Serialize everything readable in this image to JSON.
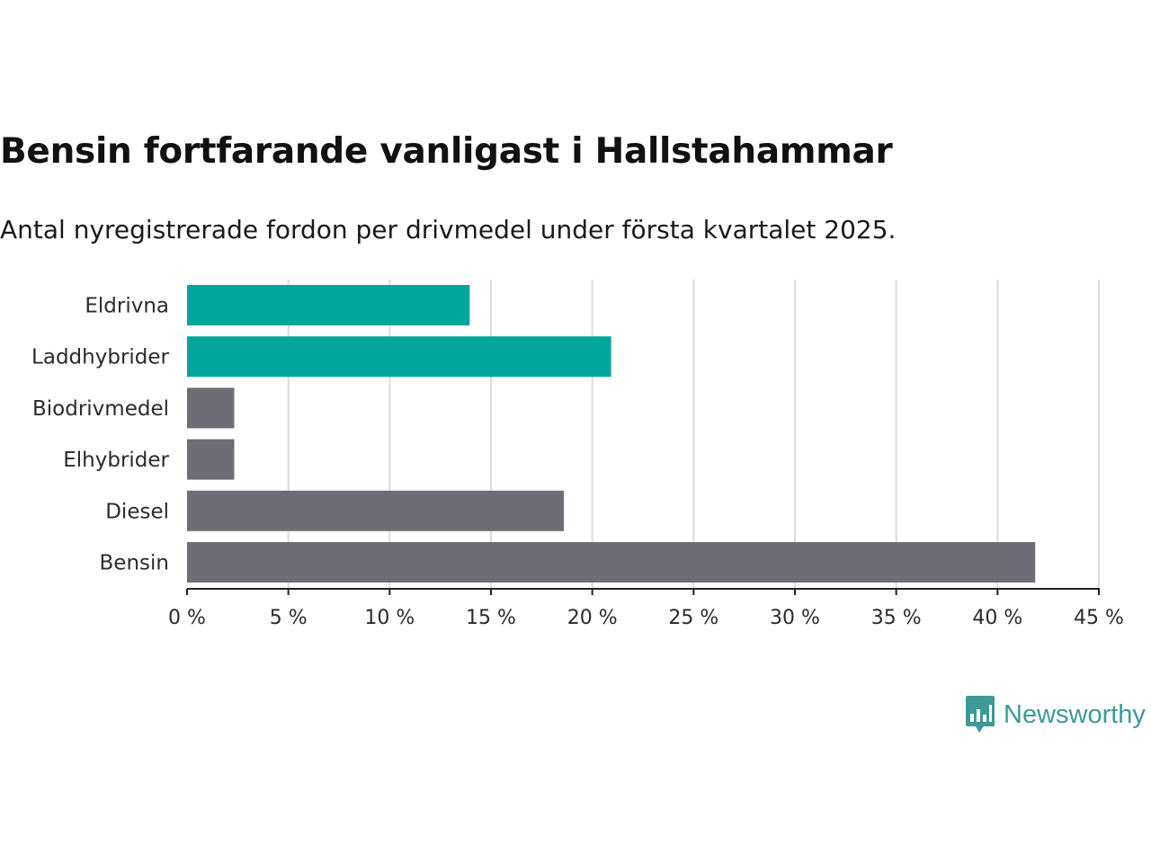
{
  "title": "Bensin fortfarande vanligast i Hallstahammar",
  "subtitle": "Antal nyregistrerade fordon per drivmedel under första kvartalet 2025.",
  "brand": {
    "name": "Newsworthy",
    "icon": "newsworthy-logo-icon",
    "color": "#3d9a95"
  },
  "chart_data": {
    "type": "bar",
    "orientation": "horizontal",
    "title": "Bensin fortfarande vanligast i Hallstahammar",
    "subtitle": "Antal nyregistrerade fordon per drivmedel under första kvartalet 2025.",
    "xlabel": "",
    "ylabel": "",
    "categories": [
      "Eldrivna",
      "Laddhybrider",
      "Biodrivmedel",
      "Elhybrider",
      "Diesel",
      "Bensin"
    ],
    "values": [
      13.95,
      20.93,
      2.33,
      2.33,
      18.6,
      41.86
    ],
    "colors": [
      "#00a59b",
      "#00a59b",
      "#6e6d75",
      "#6e6d75",
      "#6e6d75",
      "#6e6d75"
    ],
    "xlim": [
      0,
      45
    ],
    "ticks": [
      0,
      5,
      10,
      15,
      20,
      25,
      30,
      35,
      40,
      45
    ],
    "tick_labels": [
      "0 %",
      "5 %",
      "10 %",
      "15 %",
      "20 %",
      "25 %",
      "30 %",
      "35 %",
      "40 %",
      "45 %"
    ],
    "grid": true,
    "legend": "none"
  }
}
